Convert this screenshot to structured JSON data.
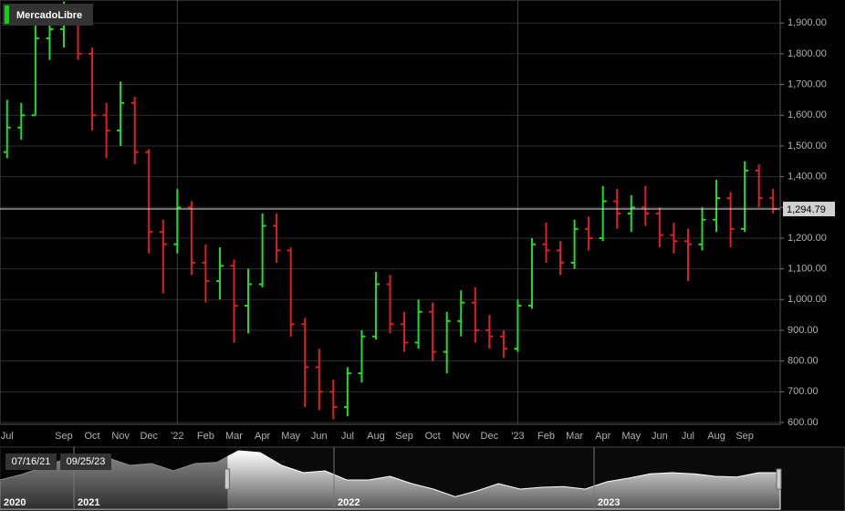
{
  "chart_data": [
    {
      "type": "ohlc",
      "categories": [
        "Jul",
        null,
        null,
        null,
        "Sep",
        null,
        "Oct",
        null,
        "Nov",
        null,
        "Dec",
        null,
        "'22",
        null,
        "Feb",
        null,
        "Mar",
        null,
        "Apr",
        null,
        "May",
        null,
        "Jun",
        null,
        "Jul",
        null,
        "Aug",
        null,
        "Sep",
        null,
        "Oct",
        null,
        "Nov",
        null,
        "Dec",
        null,
        "'23",
        null,
        "Feb",
        null,
        "Mar",
        null,
        "Apr",
        null,
        "May",
        null,
        "Jun",
        null,
        "Jul",
        null,
        "Aug",
        null,
        "Sep",
        null,
        null
      ],
      "series": [
        {
          "name": "MercadoLibre",
          "color": "#00dd00",
          "open": [
            1480,
            1560,
            1600,
            1850,
            1880,
            1900,
            1800,
            1600,
            1550,
            1640,
            1480,
            1220,
            1180,
            1300,
            1120,
            1060,
            1110,
            980,
            1050,
            1240,
            1160,
            920,
            780,
            700,
            650,
            760,
            880,
            1050,
            920,
            860,
            960,
            830,
            930,
            990,
            900,
            880,
            840,
            980,
            1180,
            1160,
            1120,
            1230,
            1200,
            1320,
            1280,
            1300,
            1280,
            1210,
            1190,
            1180,
            1260,
            1330,
            1230,
            1420,
            1330
          ],
          "high": [
            1650,
            1640,
            1900,
            1930,
            1970,
            1940,
            1820,
            1640,
            1710,
            1660,
            1490,
            1260,
            1360,
            1320,
            1180,
            1170,
            1130,
            1100,
            1280,
            1280,
            1170,
            940,
            840,
            740,
            780,
            900,
            1090,
            1080,
            960,
            1000,
            990,
            960,
            1030,
            1040,
            950,
            900,
            1000,
            1200,
            1250,
            1190,
            1260,
            1270,
            1370,
            1360,
            1340,
            1370,
            1300,
            1250,
            1230,
            1300,
            1390,
            1350,
            1450,
            1440,
            1360
          ],
          "low": [
            1460,
            1520,
            1600,
            1780,
            1820,
            1780,
            1550,
            1460,
            1500,
            1440,
            1150,
            1020,
            1150,
            1080,
            990,
            1000,
            860,
            890,
            1040,
            1120,
            880,
            650,
            640,
            610,
            620,
            730,
            870,
            890,
            830,
            840,
            800,
            760,
            880,
            860,
            840,
            810,
            830,
            970,
            1120,
            1080,
            1100,
            1160,
            1190,
            1230,
            1220,
            1240,
            1170,
            1150,
            1060,
            1160,
            1220,
            1170,
            1220,
            1300,
            1280
          ],
          "close": [
            1560,
            1600,
            1850,
            1880,
            1900,
            1800,
            1600,
            1550,
            1640,
            1480,
            1220,
            1180,
            1300,
            1120,
            1060,
            1110,
            980,
            1050,
            1240,
            1160,
            920,
            780,
            700,
            650,
            760,
            880,
            1050,
            920,
            860,
            960,
            830,
            930,
            990,
            900,
            880,
            840,
            980,
            1180,
            1160,
            1120,
            1230,
            1200,
            1320,
            1280,
            1300,
            1280,
            1210,
            1190,
            1180,
            1260,
            1330,
            1230,
            1420,
            1330,
            1294.79
          ]
        }
      ],
      "up_color": "#22dd22",
      "down_color": "#e02020",
      "last_price": {
        "value": 1294.79,
        "label": "1,294.79"
      },
      "ylim": [
        600,
        1975
      ],
      "yticks": [
        {
          "value": 600,
          "label": "600.00"
        },
        {
          "value": 700,
          "label": "700.00"
        },
        {
          "value": 800,
          "label": "800.00"
        },
        {
          "value": 900,
          "label": "900.00"
        },
        {
          "value": 1000,
          "label": "1,000.00"
        },
        {
          "value": 1100,
          "label": "1,100.00"
        },
        {
          "value": 1200,
          "label": "1,200.00"
        },
        {
          "value": 1300,
          "label": "1,300.00"
        },
        {
          "value": 1400,
          "label": "1,400.00"
        },
        {
          "value": 1500,
          "label": "1,500.00"
        },
        {
          "value": 1600,
          "label": "1,600.00"
        },
        {
          "value": 1700,
          "label": "1,700.00"
        },
        {
          "value": 1800,
          "label": "1,800.00"
        },
        {
          "value": 1900,
          "label": "1,900.00"
        }
      ],
      "grid": true
    },
    {
      "type": "area",
      "categories": [
        "2020",
        null,
        null,
        null,
        "2021",
        null,
        null,
        null,
        null,
        null,
        null,
        null,
        null,
        null,
        null,
        null,
        "2022",
        null,
        null,
        null,
        null,
        null,
        null,
        null,
        null,
        null,
        null,
        null,
        "2023",
        null,
        null,
        null,
        null,
        null,
        null,
        null,
        null
      ],
      "values": [
        1100,
        1250,
        1450,
        1675,
        1800,
        1700,
        1500,
        1550,
        1350,
        1550,
        1580,
        1900,
        1850,
        1500,
        1300,
        1350,
        1100,
        1100,
        1200,
        1000,
        850,
        640,
        800,
        1000,
        850,
        900,
        920,
        850,
        1050,
        1150,
        1270,
        1300,
        1270,
        1200,
        1180,
        1300,
        1300
      ],
      "ylim": [
        300,
        2000
      ],
      "range_labels": [
        "07/16/21",
        "09/25/23"
      ]
    }
  ]
}
